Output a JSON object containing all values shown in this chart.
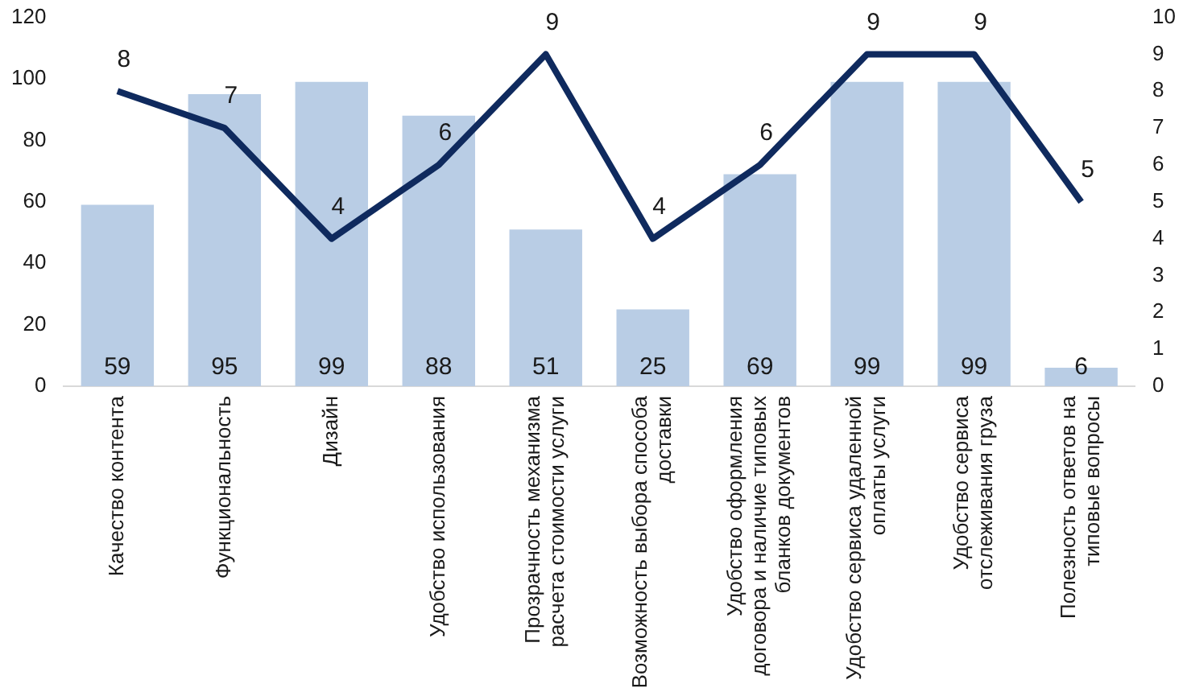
{
  "chart_data": {
    "type": "bar",
    "categories": [
      "Качество контента",
      "Функциональность",
      "Дизайн",
      "Удобство использования",
      "Прозрачность механизма расчета стоимости услуги",
      "Возможность выбора способа доставки",
      "Удобство оформления договора и наличие типовых бланков документов",
      "Удобство сервиса удаленной оплаты услуги",
      "Удобство сервиса отслеживания груза",
      "Полезность ответов на типовые вопросы"
    ],
    "series": [
      {
        "color": "#b9cde5",
        "values": [
          59,
          95,
          99,
          88,
          51,
          25,
          69,
          99,
          99,
          6
        ]
      },
      {
        "type": "line",
        "axis": "y2",
        "color": "#0f2a5e",
        "values": [
          8,
          7,
          4,
          6,
          9,
          4,
          6,
          9,
          9,
          5
        ]
      }
    ],
    "ylim": [
      0,
      120
    ],
    "yticks": [
      0,
      20,
      40,
      60,
      80,
      100,
      120
    ],
    "y2lim": [
      0,
      10
    ],
    "y2ticks": [
      0,
      1,
      2,
      3,
      4,
      5,
      6,
      7,
      8,
      9,
      10
    ],
    "data_labels": true,
    "grid": false,
    "legend": false,
    "marker": "none",
    "line_style": "solid"
  }
}
